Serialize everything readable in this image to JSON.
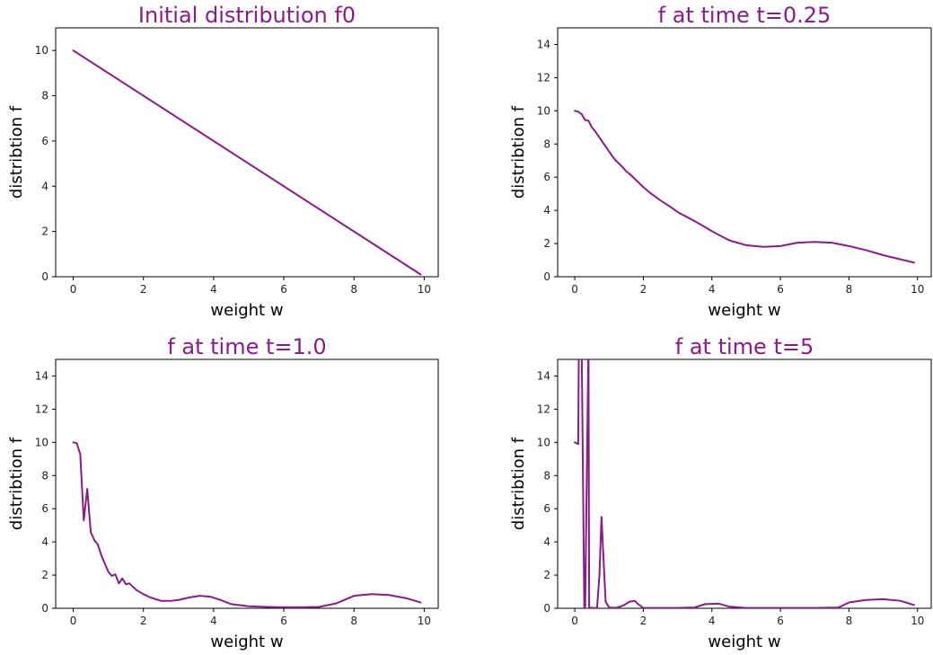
{
  "chart_data": [
    {
      "type": "line",
      "title": "Initial distribution f0",
      "xlabel": "weight w",
      "ylabel": "distribtion f",
      "xlim": [
        -0.5,
        10.4
      ],
      "ylim": [
        0,
        11
      ],
      "xticks": [
        0,
        2,
        4,
        6,
        8,
        10
      ],
      "yticks": [
        0,
        2,
        4,
        6,
        8,
        10
      ],
      "color": "#8b1a8b",
      "series": [
        {
          "x": [
            0,
            9.9
          ],
          "y": [
            10,
            0.1
          ]
        }
      ]
    },
    {
      "type": "line",
      "title": "f at time t=0.25",
      "xlabel": "weight w",
      "ylabel": "distribtion f",
      "xlim": [
        -0.5,
        10.4
      ],
      "ylim": [
        0,
        15
      ],
      "xticks": [
        0,
        2,
        4,
        6,
        8,
        10
      ],
      "yticks": [
        0,
        2,
        4,
        6,
        8,
        10,
        12,
        14
      ],
      "color": "#8b1a8b",
      "series": [
        {
          "x": [
            0,
            0.1,
            0.2,
            0.3,
            0.4,
            0.5,
            0.6,
            0.7,
            0.8,
            0.9,
            1.0,
            1.1,
            1.2,
            1.3,
            1.4,
            1.5,
            1.6,
            1.8,
            2.0,
            2.2,
            2.5,
            2.8,
            3.0,
            3.5,
            4.0,
            4.5,
            5.0,
            5.5,
            6.0,
            6.5,
            7.0,
            7.5,
            8.0,
            8.5,
            9.0,
            9.5,
            9.9
          ],
          "y": [
            10.0,
            9.95,
            9.8,
            9.45,
            9.4,
            9.0,
            8.75,
            8.45,
            8.15,
            7.85,
            7.55,
            7.25,
            7.0,
            6.8,
            6.6,
            6.35,
            6.2,
            5.8,
            5.4,
            5.05,
            4.6,
            4.2,
            3.9,
            3.35,
            2.75,
            2.2,
            1.9,
            1.8,
            1.85,
            2.05,
            2.1,
            2.05,
            1.85,
            1.6,
            1.3,
            1.05,
            0.85
          ]
        }
      ]
    },
    {
      "type": "line",
      "title": "f at time t=1.0",
      "xlabel": "weight w",
      "ylabel": "distribtion f",
      "xlim": [
        -0.5,
        10.4
      ],
      "ylim": [
        0,
        15
      ],
      "xticks": [
        0,
        2,
        4,
        6,
        8,
        10
      ],
      "yticks": [
        0,
        2,
        4,
        6,
        8,
        10,
        12,
        14
      ],
      "color": "#8b1a8b",
      "series": [
        {
          "x": [
            0,
            0.1,
            0.2,
            0.3,
            0.4,
            0.5,
            0.6,
            0.7,
            0.8,
            0.9,
            1.0,
            1.1,
            1.2,
            1.3,
            1.4,
            1.5,
            1.6,
            1.8,
            2.0,
            2.2,
            2.5,
            2.8,
            3.0,
            3.3,
            3.6,
            3.9,
            4.2,
            4.5,
            5.0,
            5.5,
            6.0,
            6.5,
            7.0,
            7.5,
            8.0,
            8.5,
            9.0,
            9.5,
            9.9
          ],
          "y": [
            10.0,
            9.95,
            9.3,
            5.3,
            7.2,
            4.6,
            4.1,
            3.85,
            3.2,
            2.7,
            2.2,
            1.95,
            2.05,
            1.5,
            1.8,
            1.45,
            1.5,
            1.1,
            0.85,
            0.65,
            0.45,
            0.45,
            0.5,
            0.65,
            0.75,
            0.7,
            0.5,
            0.25,
            0.12,
            0.08,
            0.06,
            0.06,
            0.08,
            0.3,
            0.75,
            0.85,
            0.8,
            0.6,
            0.35
          ]
        }
      ]
    },
    {
      "type": "line",
      "title": "f at time t=5",
      "xlabel": "weight w",
      "ylabel": "distribtion f",
      "xlim": [
        -0.5,
        10.4
      ],
      "ylim": [
        0,
        15
      ],
      "xticks": [
        0,
        2,
        4,
        6,
        8,
        10
      ],
      "yticks": [
        0,
        2,
        4,
        6,
        8,
        10,
        12,
        14
      ],
      "color": "#8b1a8b",
      "series": [
        {
          "x": [
            0,
            0.1,
            0.12,
            0.2,
            0.28,
            0.3,
            0.4,
            0.42,
            0.5,
            0.65,
            0.72,
            0.78,
            0.85,
            0.9,
            1.0,
            1.2,
            1.4,
            1.6,
            1.75,
            1.85,
            2.0,
            2.5,
            3.0,
            3.5,
            3.8,
            4.2,
            4.5,
            5.0,
            6.0,
            7.0,
            7.7,
            8.0,
            8.5,
            9.0,
            9.5,
            9.9
          ],
          "y": [
            10.0,
            9.9,
            16,
            16,
            -0.5,
            -0.5,
            16,
            0.05,
            0.02,
            0.02,
            2.0,
            5.5,
            2.5,
            0.4,
            0.05,
            0.02,
            0.15,
            0.4,
            0.45,
            0.25,
            0.02,
            0.02,
            0.02,
            0.05,
            0.25,
            0.28,
            0.1,
            0.02,
            0.02,
            0.02,
            0.05,
            0.35,
            0.5,
            0.55,
            0.45,
            0.2
          ]
        }
      ]
    }
  ]
}
